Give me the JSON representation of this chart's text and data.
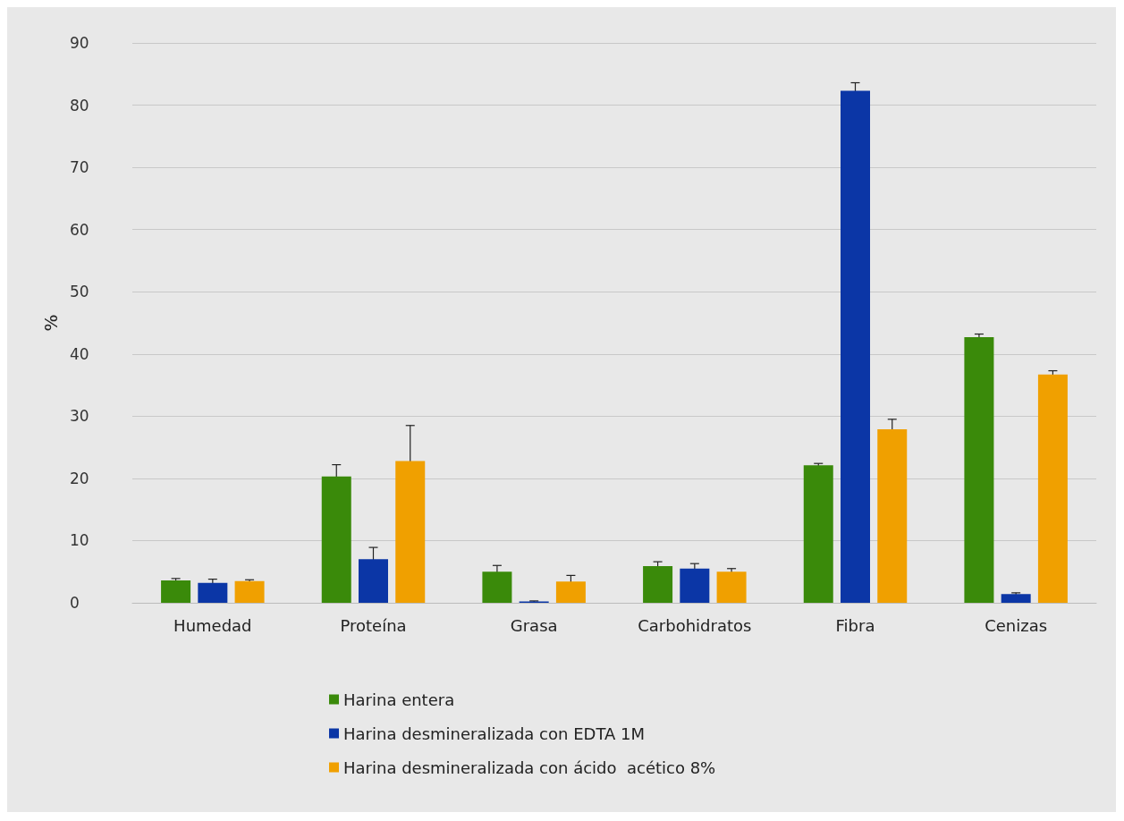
{
  "chart_data": {
    "type": "bar",
    "ylabel": "%",
    "categories": [
      "Humedad",
      "Proteína",
      "Grasa",
      "Carbohidratos",
      "Fibra",
      "Cenizas"
    ],
    "series": [
      {
        "name": "Harina entera",
        "color": "#3a8a0a",
        "values": [
          3.6,
          20.3,
          5.0,
          5.9,
          22.1,
          42.7
        ],
        "errors": [
          0.3,
          1.9,
          1.0,
          0.7,
          0.3,
          0.5
        ]
      },
      {
        "name": "Harina desmineralizada con EDTA 1M",
        "color": "#0b36a6",
        "values": [
          3.2,
          7.0,
          0.2,
          5.5,
          82.3,
          1.4
        ],
        "errors": [
          0.6,
          1.9,
          0.1,
          0.8,
          1.3,
          0.2
        ]
      },
      {
        "name": "Harina desmineralizada con ácido  acético 8%",
        "color": "#f0a000",
        "values": [
          3.5,
          22.8,
          3.4,
          5.0,
          27.9,
          36.7
        ],
        "errors": [
          0.2,
          5.7,
          1.0,
          0.5,
          1.6,
          0.6
        ]
      }
    ],
    "ylim": [
      0,
      90
    ],
    "yticks": [
      0,
      10,
      20,
      30,
      40,
      50,
      60,
      70,
      80,
      90
    ],
    "grid": "y",
    "legend": "bottom"
  }
}
